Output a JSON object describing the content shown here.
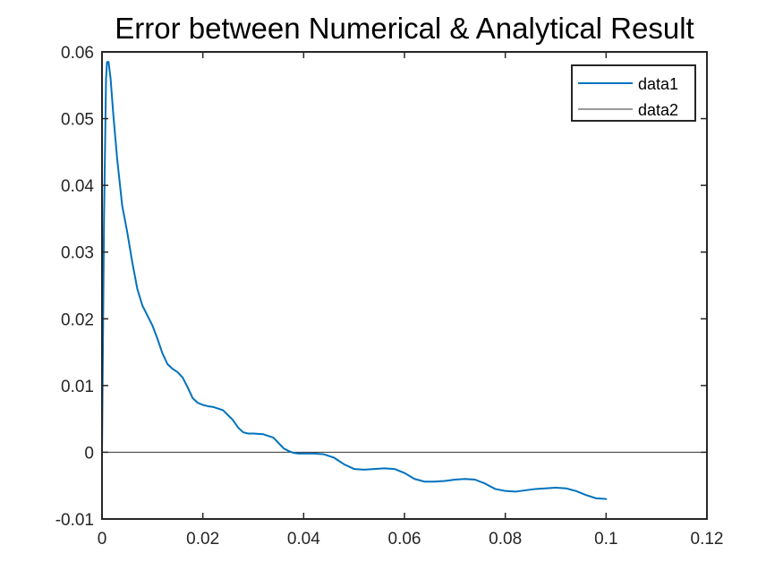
{
  "chart_data": {
    "type": "line",
    "title": "Error between Numerical & Analytical Result",
    "xlabel": "",
    "ylabel": "",
    "xlim": [
      0,
      0.12
    ],
    "ylim": [
      -0.01,
      0.06
    ],
    "x_ticks": [
      "0",
      "0.02",
      "0.04",
      "0.06",
      "0.08",
      "0.1",
      "0.12"
    ],
    "y_ticks": [
      "-0.01",
      "0",
      "0.01",
      "0.02",
      "0.03",
      "0.04",
      "0.05",
      "0.06"
    ],
    "grid": false,
    "legend_position": "top-right",
    "series": [
      {
        "name": "data1",
        "color": "#0072BD",
        "x": [
          0,
          0.0004,
          0.0008,
          0.001,
          0.0013,
          0.0017,
          0.0022,
          0.003,
          0.004,
          0.005,
          0.006,
          0.007,
          0.008,
          0.009,
          0.01,
          0.011,
          0.012,
          0.013,
          0.014,
          0.015,
          0.016,
          0.017,
          0.018,
          0.019,
          0.02,
          0.021,
          0.022,
          0.024,
          0.026,
          0.027,
          0.028,
          0.029,
          0.03,
          0.032,
          0.034,
          0.035,
          0.036,
          0.037,
          0.038,
          0.039,
          0.04,
          0.042,
          0.044,
          0.046,
          0.048,
          0.05,
          0.052,
          0.054,
          0.056,
          0.058,
          0.06,
          0.062,
          0.064,
          0.066,
          0.068,
          0.07,
          0.072,
          0.074,
          0.076,
          0.078,
          0.08,
          0.082,
          0.084,
          0.086,
          0.088,
          0.09,
          0.092,
          0.094,
          0.096,
          0.098,
          0.1
        ],
        "y": [
          0,
          0.035,
          0.056,
          0.0585,
          0.0585,
          0.056,
          0.051,
          0.044,
          0.037,
          0.033,
          0.0285,
          0.0245,
          0.022,
          0.0205,
          0.019,
          0.017,
          0.0148,
          0.0132,
          0.0125,
          0.012,
          0.0112,
          0.0097,
          0.0081,
          0.0074,
          0.0071,
          0.0069,
          0.0068,
          0.0063,
          0.0048,
          0.0037,
          0.003,
          0.0028,
          0.0028,
          0.0027,
          0.0022,
          0.0014,
          0.0006,
          0.0002,
          -0.0001,
          -0.0002,
          -0.0002,
          -0.0002,
          -0.0003,
          -0.0008,
          -0.0018,
          -0.0025,
          -0.0026,
          -0.0025,
          -0.0024,
          -0.0025,
          -0.0031,
          -0.004,
          -0.0044,
          -0.0044,
          -0.0043,
          -0.0041,
          -0.004,
          -0.0041,
          -0.0047,
          -0.0055,
          -0.0058,
          -0.0059,
          -0.0057,
          -0.0055,
          -0.0054,
          -0.0053,
          -0.0054,
          -0.0058,
          -0.0064,
          -0.0069,
          -0.007
        ]
      },
      {
        "name": "data2",
        "color": "#333333",
        "x": [
          0,
          0.12
        ],
        "y": [
          0,
          0
        ]
      }
    ]
  }
}
